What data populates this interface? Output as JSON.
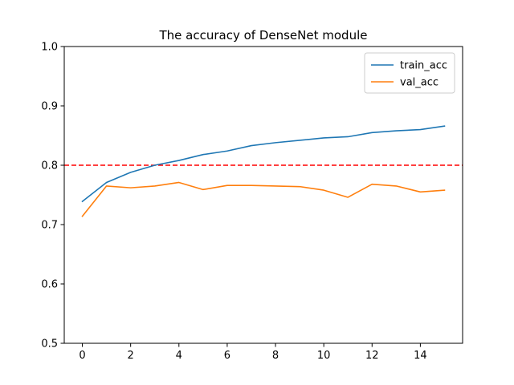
{
  "chart_data": {
    "type": "line",
    "title": "The accuracy of DenseNet module",
    "xlabel": "",
    "ylabel": "",
    "xlim": [
      -0.75,
      15.75
    ],
    "ylim": [
      0.5,
      1.0
    ],
    "x_ticks": [
      0,
      2,
      4,
      6,
      8,
      10,
      12,
      14
    ],
    "y_ticks": [
      0.5,
      0.6,
      0.7,
      0.8,
      0.9,
      1.0
    ],
    "y_tick_labels": [
      "0.5",
      "0.6",
      "0.7",
      "0.8",
      "0.9",
      "1.0"
    ],
    "grid": false,
    "legend_position": "top-right",
    "x": [
      0,
      1,
      2,
      3,
      4,
      5,
      6,
      7,
      8,
      9,
      10,
      11,
      12,
      13,
      14,
      15
    ],
    "series": [
      {
        "name": "train_acc",
        "color": "#1f77b4",
        "values": [
          0.739,
          0.771,
          0.788,
          0.8,
          0.808,
          0.818,
          0.824,
          0.833,
          0.838,
          0.842,
          0.846,
          0.848,
          0.855,
          0.858,
          0.86,
          0.866
        ]
      },
      {
        "name": "val_acc",
        "color": "#ff7f0e",
        "values": [
          0.714,
          0.765,
          0.762,
          0.765,
          0.771,
          0.759,
          0.766,
          0.766,
          0.765,
          0.764,
          0.758,
          0.746,
          0.768,
          0.765,
          0.755,
          0.758
        ]
      }
    ],
    "reference_line": {
      "y": 0.8,
      "color": "#ff0000",
      "style": "dashed"
    }
  }
}
